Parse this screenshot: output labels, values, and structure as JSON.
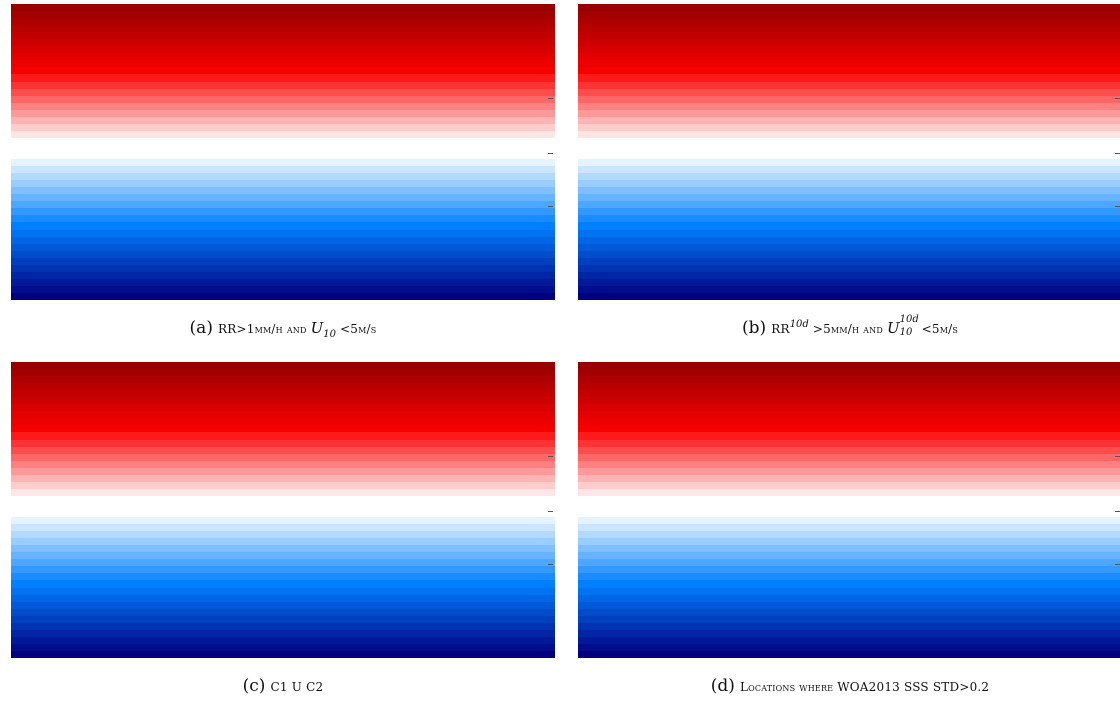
{
  "panels": [
    {
      "id": "a",
      "label": "(a)",
      "caption_parts": {
        "text1": "RR>1mm/h and ",
        "var": "U",
        "sub": "10",
        "text2": " <5m/s"
      }
    },
    {
      "id": "b",
      "label": "(b)",
      "caption_parts": {
        "text1": "RR",
        "sup": "10d",
        "text2": " >5mm/h and ",
        "var": "U",
        "sup2": "10d",
        "sub2": "10",
        "text3": " <5m/s"
      }
    },
    {
      "id": "c",
      "label": "(c)",
      "caption_parts": {
        "text1": "C1 U C2"
      }
    },
    {
      "id": "d",
      "label": "(d)",
      "caption_parts": {
        "text1": "Locations where WOA2013 SSS STD>0.2"
      }
    }
  ],
  "colormap_bands": [
    "#990000",
    "#a30000",
    "#ae0000",
    "#b80000",
    "#c30000",
    "#cd0000",
    "#d80000",
    "#e20000",
    "#ed0000",
    "#f70000",
    "#ff1a1a",
    "#ff3333",
    "#ff4d4d",
    "#ff6666",
    "#ff8080",
    "#ff9999",
    "#ffb3b3",
    "#ffcccc",
    "#ffe5e5",
    "#ffffff",
    "#ffffff",
    "#ffffff",
    "#e5f2ff",
    "#cce5ff",
    "#b3d9ff",
    "#99ccff",
    "#80bfff",
    "#66b3ff",
    "#4da6ff",
    "#3399ff",
    "#1a8cff",
    "#0080ff",
    "#0073f2",
    "#0066e5",
    "#0059d9",
    "#004dcc",
    "#0040bf",
    "#0033b3",
    "#0026a6",
    "#001a99",
    "#000d8c",
    "#00007f"
  ]
}
